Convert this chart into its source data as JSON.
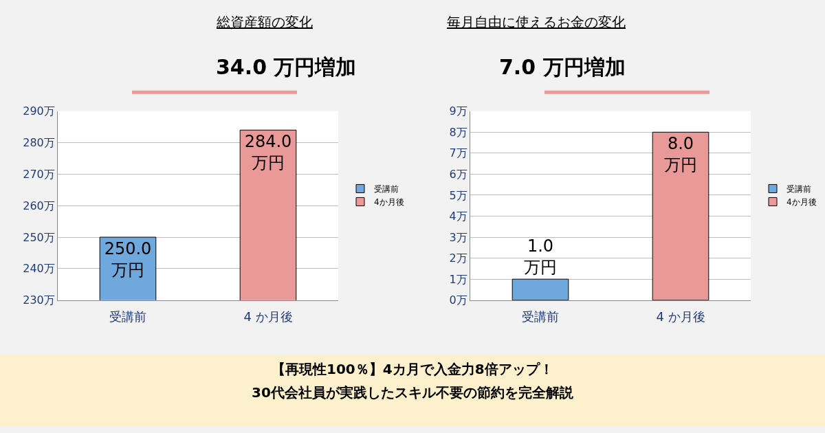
{
  "chart_data": [
    {
      "type": "bar",
      "title": "総資産額の変化",
      "subtitle": "34.0 万円増加",
      "categories": [
        "受講前",
        "4 か月後"
      ],
      "series": [
        {
          "name": "受講前",
          "color": "#6fa8dc",
          "values": [
            250,
            null
          ],
          "value_labels": [
            "250.0\n万円",
            null
          ]
        },
        {
          "name": "4か月後",
          "color": "#ea9999",
          "values": [
            null,
            284
          ],
          "value_labels": [
            null,
            "284.0\n万円"
          ]
        }
      ],
      "ylim": [
        230,
        290
      ],
      "yticks": [
        {
          "value": 230,
          "label": "230万"
        },
        {
          "value": 240,
          "label": "240万"
        },
        {
          "value": 250,
          "label": "250万"
        },
        {
          "value": 260,
          "label": "260万"
        },
        {
          "value": 270,
          "label": "270万"
        },
        {
          "value": 280,
          "label": "280万"
        },
        {
          "value": 290,
          "label": "290万"
        }
      ],
      "grid": "y",
      "legend": "right"
    },
    {
      "type": "bar",
      "title": "毎月自由に使えるお金の変化",
      "subtitle": "7.0 万円増加",
      "categories": [
        "受講前",
        "4 か月後"
      ],
      "series": [
        {
          "name": "受講前",
          "color": "#6fa8dc",
          "values": [
            1,
            null
          ],
          "value_labels": [
            "1.0\n万円",
            null
          ]
        },
        {
          "name": "4か月後",
          "color": "#ea9999",
          "values": [
            null,
            8
          ],
          "value_labels": [
            null,
            "8.0\n万円"
          ]
        }
      ],
      "ylim": [
        0,
        9
      ],
      "yticks": [
        {
          "value": 0,
          "label": "0万"
        },
        {
          "value": 1,
          "label": "1万"
        },
        {
          "value": 2,
          "label": "2万"
        },
        {
          "value": 3,
          "label": "3万"
        },
        {
          "value": 4,
          "label": "4万"
        },
        {
          "value": 5,
          "label": "5万"
        },
        {
          "value": 6,
          "label": "6万"
        },
        {
          "value": 7,
          "label": "7万"
        },
        {
          "value": 8,
          "label": "8万"
        },
        {
          "value": 9,
          "label": "9万"
        }
      ],
      "grid": "y",
      "legend": "right"
    },
    {
      "type": "other",
      "annotations": [
        "【再現性100％】4カ月で入金力8倍アップ！",
        "30代会社員が実践したスキル不要の節約を完全解説"
      ]
    }
  ]
}
